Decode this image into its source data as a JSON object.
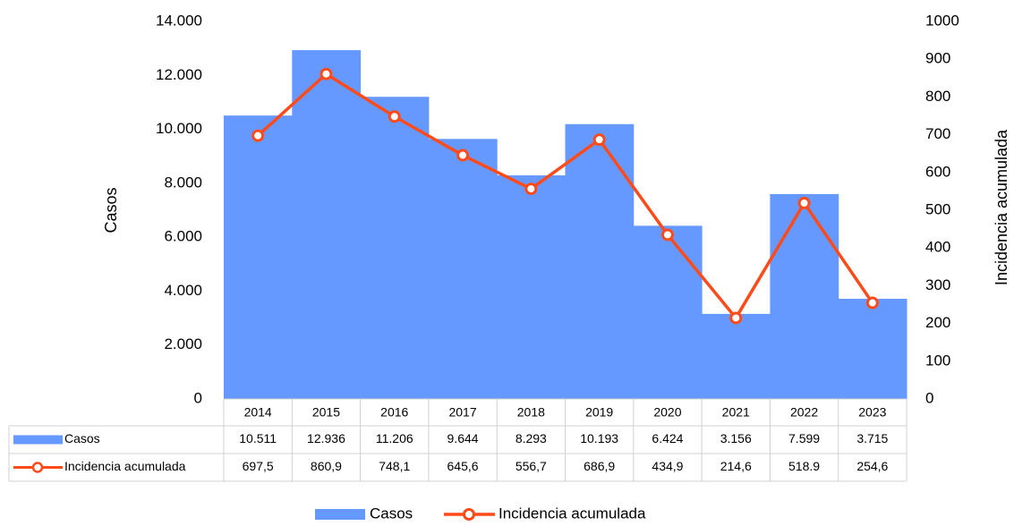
{
  "chart_data": {
    "type": "bar-line",
    "ylabel": "Casos",
    "y2label": "Incidencia acumulada",
    "categories": [
      "2014",
      "2015",
      "2016",
      "2017",
      "2018",
      "2019",
      "2020",
      "2021",
      "2022",
      "2023"
    ],
    "series": [
      {
        "name": "Casos",
        "type": "bar",
        "color": "#6699ff",
        "values": [
          10511,
          12936,
          11206,
          9644,
          8293,
          10193,
          6424,
          3156,
          7599,
          3715
        ],
        "value_labels": [
          "10.511",
          "12.936",
          "11.206",
          "9.644",
          "8.293",
          "10.193",
          "6.424",
          "3.156",
          "7.599",
          "3.715"
        ]
      },
      {
        "name": "Incidencia acumulada",
        "type": "line",
        "axis": "y2",
        "color": "#ff4a1a",
        "values": [
          697.5,
          860.9,
          748.1,
          645.6,
          556.7,
          686.9,
          434.9,
          214.6,
          518.9,
          254.6
        ],
        "value_labels": [
          "697,5",
          "860,9",
          "748,1",
          "645,6",
          "556,7",
          "686,9",
          "434,9",
          "214,6",
          "518.9",
          "254,6"
        ]
      }
    ],
    "ylim": [
      0,
      14000
    ],
    "yticks": [
      0,
      {
        "value": 2000,
        "label": "2.000"
      },
      {
        "value": 4000,
        "label": "4.000"
      },
      {
        "value": 6000,
        "label": "6.000"
      },
      {
        "value": 8000,
        "label": "8.000"
      },
      {
        "value": 10000,
        "label": "10.000"
      },
      {
        "value": 12000,
        "label": "12.000"
      },
      {
        "value": 14000,
        "label": "14.000"
      }
    ],
    "y2lim": [
      0,
      1000
    ],
    "y2ticks": [
      0,
      100,
      200,
      300,
      400,
      500,
      600,
      700,
      800,
      900,
      1000
    ]
  }
}
